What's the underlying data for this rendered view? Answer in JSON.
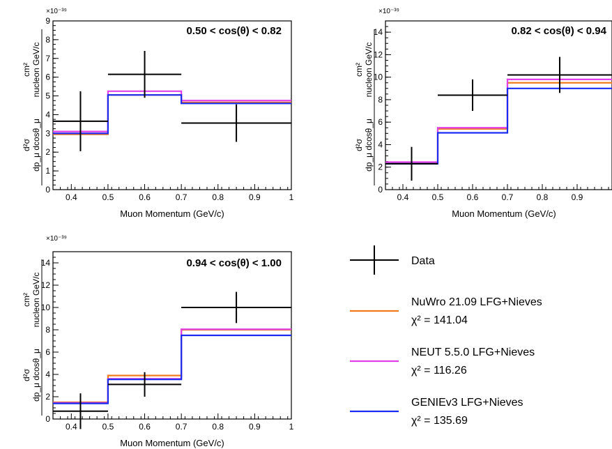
{
  "chart_data": [
    {
      "type": "line",
      "title": "0.50 < cos(θ) < 0.82",
      "xlabel": "Muon Momentum (GeV/c)",
      "ylabel_num": "cm²",
      "ylabel_num_unit": "nucleon GeV/c",
      "ylabel_den": "d²σ",
      "ylabel_den_unit": "dp_μ dcosθ_μ",
      "y_scale_label": "×10⁻³⁹",
      "xlim": [
        0.35,
        1.0
      ],
      "ylim": [
        0,
        9
      ],
      "xticks": [
        "0.4",
        "0.5",
        "0.6",
        "0.7",
        "0.8",
        "0.9",
        "1"
      ],
      "yticks": [
        "0",
        "1",
        "2",
        "3",
        "4",
        "5",
        "6",
        "7",
        "8",
        "9"
      ],
      "ytick_values": [
        0,
        1,
        2,
        3,
        4,
        5,
        6,
        7,
        8,
        9
      ],
      "bin_edges": [
        0.35,
        0.5,
        0.7,
        1.0
      ],
      "series": [
        {
          "name": "Data",
          "x": [
            0.425,
            0.6,
            0.85
          ],
          "y": [
            3.65,
            6.15,
            3.55
          ],
          "yerr": [
            1.6,
            1.25,
            1.0
          ]
        },
        {
          "name": "NuWro 21.09 LFG+Nieves",
          "values": [
            2.95,
            5.05,
            4.65
          ]
        },
        {
          "name": "NEUT 5.5.0 LFG+Nieves",
          "values": [
            3.1,
            5.25,
            4.75
          ]
        },
        {
          "name": "GENIEv3 LFG+Nieves",
          "values": [
            3.0,
            5.05,
            4.6
          ]
        }
      ]
    },
    {
      "type": "line",
      "title": "0.82 < cos(θ) < 0.94",
      "xlabel": "Muon Momentum (GeV/c)",
      "ylabel_num": "cm²",
      "ylabel_num_unit": "nucleon GeV/c",
      "ylabel_den": "d²σ",
      "ylabel_den_unit": "dp_μ dcosθ_μ",
      "y_scale_label": "×10⁻³⁹",
      "xlim": [
        0.35,
        1.0
      ],
      "ylim": [
        0,
        15
      ],
      "xticks": [
        "0.4",
        "0.5",
        "0.6",
        "0.7",
        "0.8",
        "0.9"
      ],
      "yticks": [
        "0",
        "2",
        "4",
        "6",
        "8",
        "10",
        "12",
        "14"
      ],
      "ytick_values": [
        0,
        2,
        4,
        6,
        8,
        10,
        12,
        14
      ],
      "bin_edges": [
        0.35,
        0.5,
        0.7,
        1.0
      ],
      "series": [
        {
          "name": "Data",
          "x": [
            0.425,
            0.6,
            0.85
          ],
          "y": [
            2.3,
            8.4,
            10.2
          ],
          "yerr": [
            1.5,
            1.4,
            1.6
          ]
        },
        {
          "name": "NuWro 21.09 LFG+Nieves",
          "values": [
            2.35,
            5.4,
            9.5
          ]
        },
        {
          "name": "NEUT 5.5.0 LFG+Nieves",
          "values": [
            2.45,
            5.5,
            9.8
          ]
        },
        {
          "name": "GENIEv3 LFG+Nieves",
          "values": [
            2.3,
            5.05,
            9.0
          ]
        }
      ]
    },
    {
      "type": "line",
      "title": "0.94 < cos(θ) < 1.00",
      "xlabel": "Muon Momentum (GeV/c)",
      "ylabel_num": "cm²",
      "ylabel_num_unit": "nucleon GeV/c",
      "ylabel_den": "d²σ",
      "ylabel_den_unit": "dp_μ dcosθ_μ",
      "y_scale_label": "×10⁻³⁹",
      "xlim": [
        0.35,
        1.0
      ],
      "ylim": [
        0,
        15
      ],
      "xticks": [
        "0.4",
        "0.5",
        "0.6",
        "0.7",
        "0.8",
        "0.9",
        "1"
      ],
      "yticks": [
        "0",
        "2",
        "4",
        "6",
        "8",
        "10",
        "12",
        "14"
      ],
      "ytick_values": [
        0,
        2,
        4,
        6,
        8,
        10,
        12,
        14
      ],
      "bin_edges": [
        0.35,
        0.5,
        0.7,
        1.0
      ],
      "series": [
        {
          "name": "Data",
          "x": [
            0.425,
            0.6,
            0.85
          ],
          "y": [
            0.7,
            3.1,
            10.0
          ],
          "yerr": [
            1.6,
            1.1,
            1.4
          ]
        },
        {
          "name": "NuWro 21.09 LFG+Nieves",
          "values": [
            1.5,
            3.9,
            8.0
          ]
        },
        {
          "name": "NEUT 5.5.0 LFG+Nieves",
          "values": [
            1.45,
            3.6,
            8.05
          ]
        },
        {
          "name": "GENIEv3 LFG+Nieves",
          "values": [
            1.4,
            3.55,
            7.5
          ]
        }
      ]
    }
  ],
  "legend": [
    {
      "label": "Data",
      "chi2": "",
      "color": "#000000",
      "kind": "data"
    },
    {
      "label": "NuWro 21.09 LFG+Nieves",
      "chi2": "χ² = 141.04",
      "color": "#f07a1e",
      "kind": "line"
    },
    {
      "label": "NEUT 5.5.0 LFG+Nieves",
      "chi2": "χ² = 116.26",
      "color": "#e040e8",
      "kind": "line"
    },
    {
      "label": "GENIEv3 LFG+Nieves",
      "chi2": "χ² = 135.69",
      "color": "#1a2cf0",
      "kind": "line"
    }
  ],
  "colors": {
    "NuWro 21.09 LFG+Nieves": "#f07a1e",
    "NEUT 5.5.0 LFG+Nieves": "#e040e8",
    "GENIEv3 LFG+Nieves": "#1a2cf0",
    "Data": "#000000"
  }
}
